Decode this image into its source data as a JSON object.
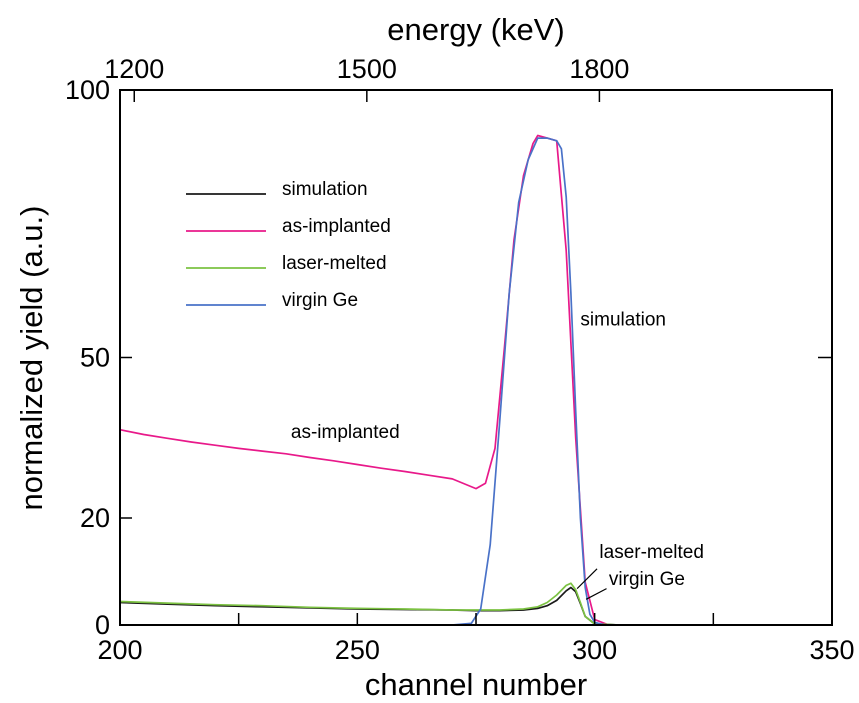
{
  "chart_data": {
    "type": "line",
    "title": "",
    "xlabel": "channel number",
    "ylabel": "normalized yield (a.u.)",
    "top_xlabel": "energy (keV)",
    "xlim": [
      200,
      350
    ],
    "ylim": [
      0,
      100
    ],
    "x_ticks": [
      200,
      250,
      300,
      350
    ],
    "x_ticks_labels": [
      "200",
      "250",
      "300",
      "350"
    ],
    "x_minor_ticks": [
      225,
      275,
      325
    ],
    "y_ticks": [
      0,
      20,
      50,
      100
    ],
    "y_ticks_labels": [
      "0",
      "20",
      "50",
      "100"
    ],
    "top_ticks": [
      {
        "label": "1200",
        "channel": 203
      },
      {
        "label": "1500",
        "channel": 252
      },
      {
        "label": "1800",
        "channel": 301
      }
    ],
    "legend_position": "upper-left",
    "legend": [
      {
        "label": "simulation",
        "color": "#1a1a1a"
      },
      {
        "label": "as-implanted",
        "color": "#e8198a"
      },
      {
        "label": "laser-melted",
        "color": "#7cc242"
      },
      {
        "label": "virgin Ge",
        "color": "#4a72c8"
      }
    ],
    "annotations": [
      {
        "text": "as-implanted",
        "x": 236,
        "y": 35
      },
      {
        "text": "simulation",
        "x": 297,
        "y": 56
      },
      {
        "text": "laser-melted",
        "x": 301,
        "y": 12.5
      },
      {
        "text": "virgin Ge",
        "x": 303,
        "y": 7.5
      }
    ],
    "series": [
      {
        "name": "as-implanted",
        "color": "#e8198a",
        "x": [
          200,
          205,
          210,
          215,
          220,
          225,
          230,
          235,
          240,
          245,
          250,
          255,
          260,
          265,
          270,
          275,
          277,
          279,
          281,
          283,
          285,
          287,
          288,
          290,
          292,
          294,
          296,
          298,
          300,
          303
        ],
        "y": [
          36.5,
          35.6,
          34.9,
          34.2,
          33.6,
          33.0,
          32.5,
          32.0,
          31.3,
          30.7,
          30.0,
          29.3,
          28.7,
          28.0,
          27.3,
          25.5,
          26.5,
          33.0,
          52.0,
          72.0,
          84.0,
          90.0,
          91.5,
          91.0,
          90.5,
          70.0,
          35.0,
          8.0,
          1.0,
          0.0
        ]
      },
      {
        "name": "simulation",
        "color": "#1a1a1a",
        "x": [
          200,
          210,
          220,
          230,
          240,
          250,
          260,
          270,
          275,
          280,
          285,
          288,
          290,
          292,
          294,
          295,
          296,
          297,
          298,
          300,
          305,
          350
        ],
        "y": [
          4.2,
          3.9,
          3.6,
          3.4,
          3.2,
          3.0,
          2.9,
          2.8,
          2.7,
          2.7,
          2.8,
          3.1,
          3.6,
          4.6,
          6.4,
          7.0,
          6.2,
          4.0,
          1.6,
          0.2,
          0.0,
          0.0
        ]
      },
      {
        "name": "laser-melted",
        "color": "#7cc242",
        "x": [
          200,
          210,
          220,
          230,
          240,
          250,
          260,
          270,
          275,
          280,
          285,
          288,
          290,
          292,
          294,
          295,
          296,
          297,
          298,
          300,
          305,
          350
        ],
        "y": [
          4.4,
          4.1,
          3.8,
          3.6,
          3.3,
          3.1,
          3.0,
          2.8,
          2.8,
          2.8,
          3.0,
          3.4,
          4.2,
          5.6,
          7.4,
          7.8,
          6.6,
          4.2,
          1.6,
          0.2,
          0.0,
          0.0
        ]
      },
      {
        "name": "virgin Ge",
        "color": "#4a72c8",
        "x": [
          200,
          270,
          274,
          276,
          278,
          280,
          282,
          284,
          286,
          288,
          290,
          292,
          293,
          294,
          295,
          296,
          297,
          298,
          299,
          300,
          302,
          350
        ],
        "y": [
          0,
          0,
          0.3,
          3.0,
          15.0,
          38.0,
          62.0,
          79.0,
          87.0,
          91.0,
          91.0,
          90.5,
          89.0,
          80.0,
          62.0,
          40.0,
          20.0,
          7.0,
          2.0,
          0.5,
          0.0,
          0.0
        ]
      }
    ]
  }
}
